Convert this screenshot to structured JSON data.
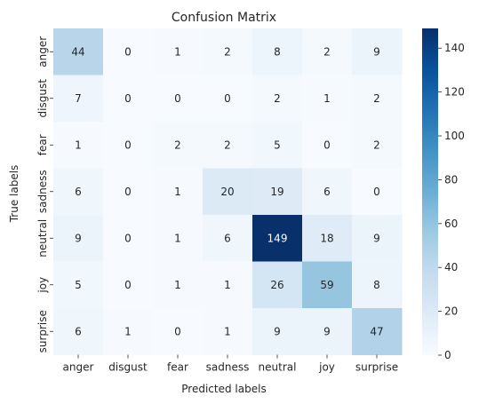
{
  "chart_data": {
    "type": "heatmap",
    "title": "Confusion Matrix",
    "xlabel": "Predicted labels",
    "ylabel": "True labels",
    "x_categories": [
      "anger",
      "disgust",
      "fear",
      "sadness",
      "neutral",
      "joy",
      "surprise"
    ],
    "y_categories": [
      "anger",
      "disgust",
      "fear",
      "sadness",
      "neutral",
      "joy",
      "surprise"
    ],
    "values": [
      [
        44,
        0,
        1,
        2,
        8,
        2,
        9
      ],
      [
        7,
        0,
        0,
        0,
        2,
        1,
        2
      ],
      [
        1,
        0,
        2,
        2,
        5,
        0,
        2
      ],
      [
        6,
        0,
        1,
        20,
        19,
        6,
        0
      ],
      [
        9,
        0,
        1,
        6,
        149,
        18,
        9
      ],
      [
        5,
        0,
        1,
        1,
        26,
        59,
        8
      ],
      [
        6,
        1,
        0,
        1,
        9,
        9,
        47
      ]
    ],
    "colormap": "Blues",
    "value_range": [
      0,
      149
    ],
    "colorbar": {
      "ticks": [
        0,
        20,
        40,
        60,
        80,
        100,
        120,
        140
      ]
    },
    "annotations": true
  }
}
